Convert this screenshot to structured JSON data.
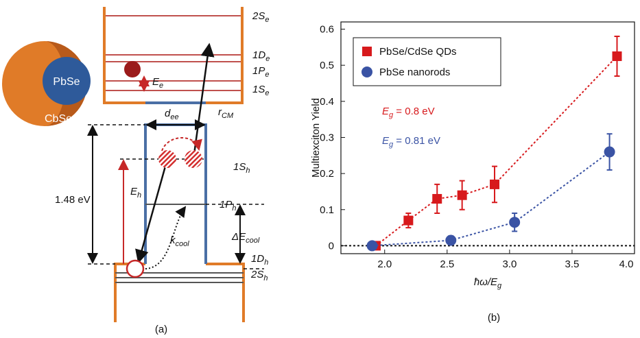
{
  "diagram": {
    "core": "PbSe",
    "shell": "CbSe",
    "levels_e": [
      {
        "text": "2S",
        "sub": "e"
      },
      {
        "text": "1D",
        "sub": "e"
      },
      {
        "text": "1P",
        "sub": "e"
      },
      {
        "text": "1S",
        "sub": "e"
      }
    ],
    "e_energy": {
      "text": "E",
      "sub": "e"
    },
    "d_ee": {
      "text": "d",
      "sub": "ee"
    },
    "r_cm": {
      "text": "r",
      "sub": "CM"
    },
    "levels_h": [
      {
        "text": "1S",
        "sub": "h"
      },
      {
        "text": "1P",
        "sub": "h"
      },
      {
        "text": "1D",
        "sub": "h"
      },
      {
        "text": "2S",
        "sub": "h"
      }
    ],
    "gap": "1.48 eV",
    "h_energy": {
      "text": "E",
      "sub": "h"
    },
    "delta_cool": {
      "text": "ΔE",
      "sub": "cool"
    },
    "k_cool": {
      "text": "k",
      "sub": "cool"
    },
    "caption": "(a)"
  },
  "chart_data": {
    "type": "scatter",
    "caption": "(b)",
    "x_label": {
      "text": "ħω/E",
      "sub": "g"
    },
    "y_label": "Multiexciton Yield",
    "annotations": [
      {
        "text": "E",
        "sub": "g",
        "after": " = 0.8 eV",
        "color": "#d7191c"
      },
      {
        "text": "E",
        "sub": "g",
        "after": " = 0.81 eV",
        "color": "#3a53a4"
      }
    ],
    "series": [
      {
        "name": "PbSe/CdSe QDs",
        "color": "#d7191c",
        "marker": "square",
        "x": [
          1.93,
          2.19,
          2.42,
          2.62,
          2.88,
          3.86
        ],
        "values": [
          0,
          0.07,
          0.13,
          0.14,
          0.17,
          0.525
        ],
        "errors": [
          0.005,
          0.02,
          0.04,
          0.04,
          0.05,
          0.055
        ]
      },
      {
        "name": "PbSe nanorods",
        "color": "#3a53a4",
        "marker": "circle",
        "x": [
          1.9,
          2.53,
          3.04,
          3.8
        ],
        "values": [
          0,
          0.015,
          0.065,
          0.26
        ],
        "errors": [
          0.003,
          0.012,
          0.025,
          0.05
        ]
      }
    ],
    "xlim": [
      1.65,
      4.0
    ],
    "ylim": [
      -0.022,
      0.62
    ],
    "xticks": [
      {
        "value": 2,
        "label": "2.0"
      },
      2.5,
      {
        "value": 3,
        "label": "3.0"
      },
      3.5,
      {
        "value": 4,
        "label": "4.0"
      }
    ],
    "yticks": [
      0,
      0.1,
      0.2,
      0.3,
      0.4,
      0.5,
      0.6
    ],
    "zero_line": true,
    "legend": "upper left"
  }
}
